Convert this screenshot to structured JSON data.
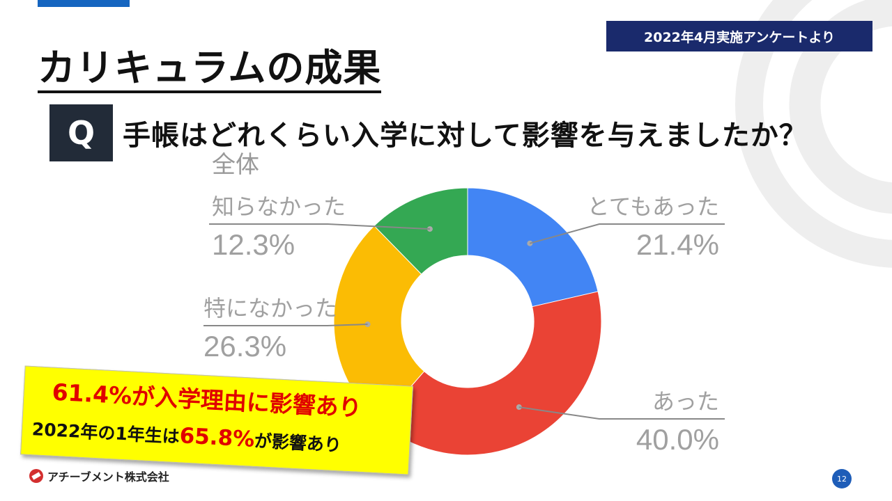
{
  "header": {
    "badge": "2022年4月実施アンケートより",
    "title": "カリキュラムの成果"
  },
  "question": {
    "marker": "Q",
    "text": "手帳はどれくらい入学に対して影響を与えましたか？"
  },
  "chart_data": {
    "type": "pie",
    "subtitle": "全体",
    "donut": true,
    "categories": [
      "とてもあった",
      "あった",
      "特になかった",
      "知らなかった"
    ],
    "values": [
      21.4,
      40.0,
      26.3,
      12.3
    ],
    "value_labels": [
      "21.4%",
      "40.0%",
      "26.3%",
      "12.3%"
    ],
    "colors": [
      "#4285f4",
      "#ea4335",
      "#fbbc04",
      "#34a853"
    ]
  },
  "callout": {
    "line1": "61.4%が入学理由に影響あり",
    "line2_prefix": "2022年の1年生は",
    "line2_highlight": "65.8%",
    "line2_suffix": "が影響あり"
  },
  "footer": {
    "company": "アチーブメント株式会社",
    "page_number": "12"
  }
}
